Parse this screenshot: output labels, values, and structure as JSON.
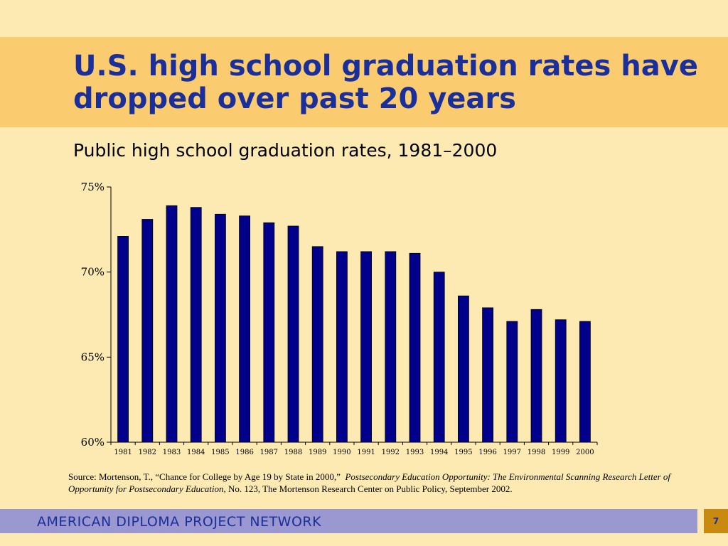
{
  "slide": {
    "title": "U.S. high school graduation rates have dropped over past 20 years",
    "subtitle": "Public high school graduation rates, 1981–2000",
    "source_prefix": "Source: Mortenson, T., “Chance for College by Age 19 by State in 2000,”",
    "source_italic": "Postsecondary Education Opportunity: The Environmental Scanning Research Letter of Opportunity for Postsecondary Education,",
    "source_suffix": "No. 123, The Mortenson Research Center on Public Policy, September 2002.",
    "footer": "AMERICAN DIPLOMA PROJECT NETWORK",
    "page_number": "7"
  },
  "colors": {
    "background": "#fdeab3",
    "title_band": "#fbcc6f",
    "title_text": "#1a2f9a",
    "bar_fill": "#00008b",
    "footer_bar": "#9a97d1",
    "page_badge": "#c98a10"
  },
  "chart_data": {
    "type": "bar",
    "title": "Public high school graduation rates, 1981–2000",
    "categories": [
      "1981",
      "1982",
      "1983",
      "1984",
      "1985",
      "1986",
      "1987",
      "1988",
      "1989",
      "1990",
      "1991",
      "1992",
      "1993",
      "1994",
      "1995",
      "1996",
      "1997",
      "1998",
      "1999",
      "2000"
    ],
    "values": [
      72.1,
      73.1,
      73.9,
      73.8,
      73.4,
      73.3,
      72.9,
      72.7,
      71.5,
      71.2,
      71.2,
      71.2,
      71.1,
      70.0,
      68.6,
      67.9,
      67.1,
      67.8,
      67.2,
      67.1
    ],
    "ylim": [
      60,
      75
    ],
    "yticks": [
      60,
      65,
      70,
      75
    ],
    "ytick_labels": [
      "60%",
      "65%",
      "70%",
      "75%"
    ],
    "unit": "%",
    "grid": false,
    "legend": "none"
  }
}
